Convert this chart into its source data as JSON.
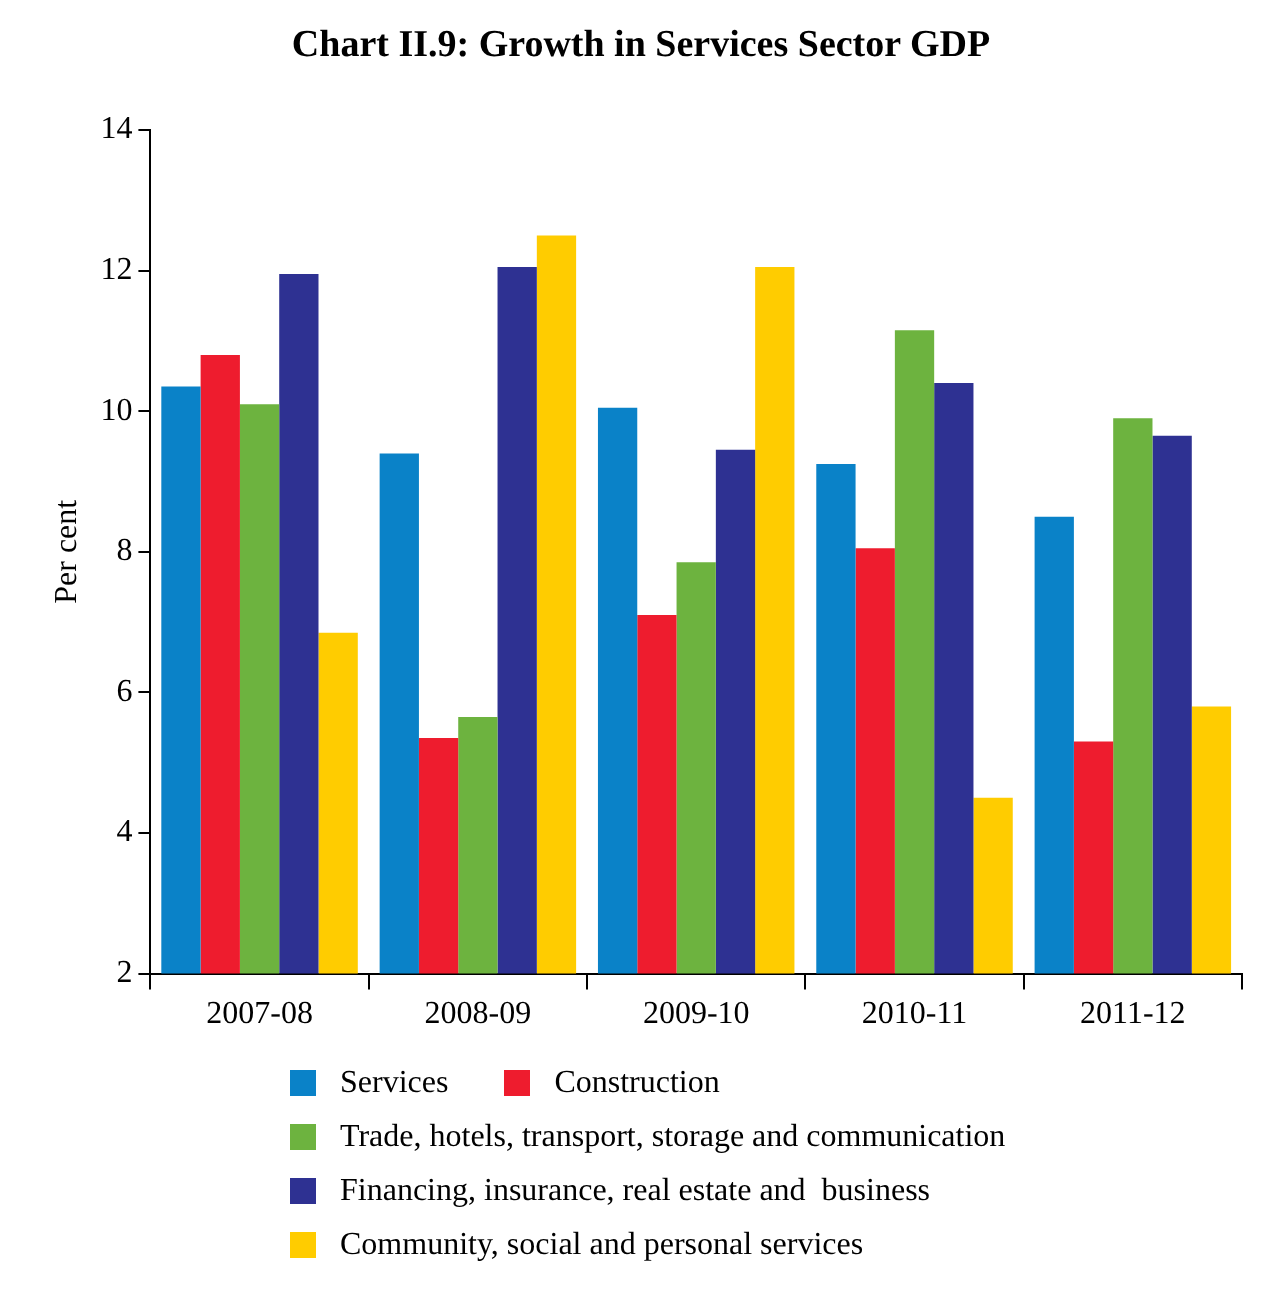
{
  "chart_data": {
    "type": "bar",
    "title": "Chart II.9: Growth in Services Sector GDP",
    "ylabel": "Per cent",
    "categories": [
      "2007-08",
      "2008-09",
      "2009-10",
      "2010-11",
      "2011-12"
    ],
    "series": [
      {
        "name": "Services",
        "color": "#0a82c8",
        "values": [
          10.35,
          9.4,
          10.05,
          9.25,
          8.5
        ]
      },
      {
        "name": "Construction",
        "color": "#ee1c2e",
        "values": [
          10.8,
          5.35,
          7.1,
          8.05,
          5.3
        ]
      },
      {
        "name": "Trade, hotels, transport, storage and communication",
        "color": "#6db33f",
        "values": [
          10.1,
          5.65,
          7.85,
          11.15,
          9.9
        ]
      },
      {
        "name": "Financing, insurance, real estate and  business",
        "color": "#2e3192",
        "values": [
          11.95,
          12.05,
          9.45,
          10.4,
          9.65
        ]
      },
      {
        "name": "Community, social and personal services",
        "color": "#ffcc00",
        "values": [
          6.85,
          12.5,
          12.05,
          4.5,
          5.8
        ]
      }
    ],
    "ylim": [
      2,
      14
    ],
    "yticks": [
      2,
      4,
      6,
      8,
      10,
      12,
      14
    ],
    "grid": false,
    "legend": "bottom"
  }
}
